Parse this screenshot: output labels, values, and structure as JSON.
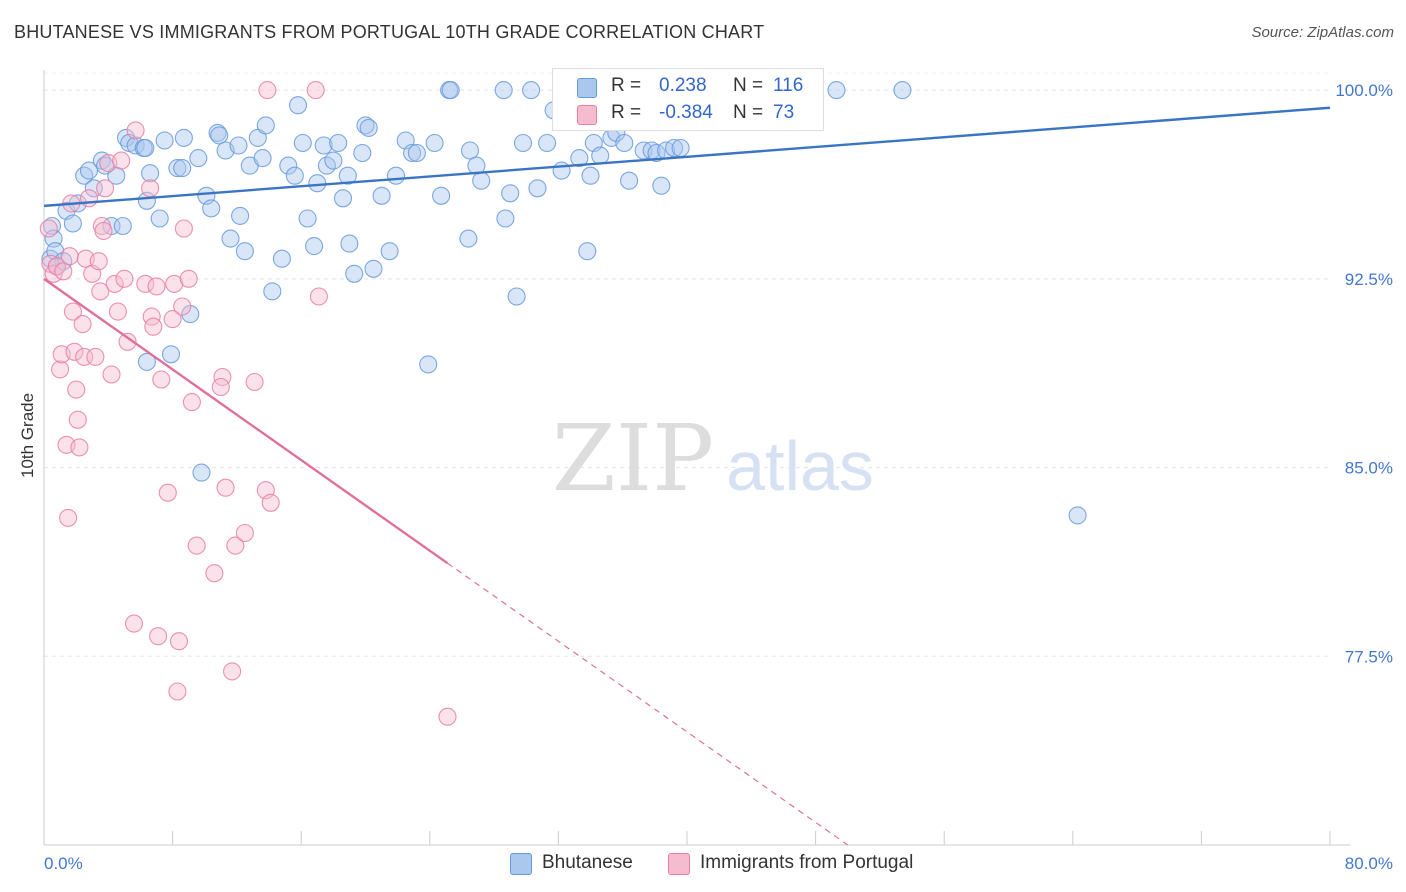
{
  "title": "BHUTANESE VS IMMIGRANTS FROM PORTUGAL 10TH GRADE CORRELATION CHART",
  "source": "Source: ZipAtlas.com",
  "watermark": {
    "zip": "ZIP",
    "atlas": "atlas"
  },
  "colors": {
    "blue": "#6699dd",
    "blue_fill": "#aac8ee",
    "blue_line": "#3a75c4",
    "pink": "#e87fa3",
    "pink_fill": "#f5bcd0",
    "pink_line": "#e0709a",
    "tick_text": "#4477cc",
    "grid": "#e3e3e3"
  },
  "stats": [
    {
      "r_label": "R =",
      "r_value": " 0.238",
      "n_label": "N =",
      "n_value": "116"
    },
    {
      "r_label": "R =",
      "r_value": "-0.384",
      "n_label": "N =",
      "n_value": " 73"
    }
  ],
  "chart_data": {
    "type": "scatter",
    "xlabel": "",
    "ylabel": "10th Grade",
    "xlim": [
      0,
      80
    ],
    "ylim": [
      70,
      100.8
    ],
    "x_ticks": [
      "0.0%",
      "80.0%"
    ],
    "y_ticks": [
      {
        "value": 100.0,
        "label": "100.0%"
      },
      {
        "value": 92.5,
        "label": "92.5%"
      },
      {
        "value": 85.0,
        "label": "85.0%"
      },
      {
        "value": 77.5,
        "label": "77.5%"
      }
    ],
    "grid": true,
    "legend_position": "bottom-center",
    "series": [
      {
        "name": "Bhutanese",
        "color": "blue",
        "trend": {
          "x": [
            0,
            80
          ],
          "y": [
            95.4,
            99.3
          ]
        },
        "points": [
          [
            0.4,
            93.3
          ],
          [
            0.5,
            94.6
          ],
          [
            0.6,
            94.1
          ],
          [
            0.7,
            93.6
          ],
          [
            0.8,
            93.0
          ],
          [
            1.2,
            93.2
          ],
          [
            1.4,
            95.2
          ],
          [
            1.8,
            94.7
          ],
          [
            2.1,
            95.5
          ],
          [
            2.5,
            96.6
          ],
          [
            2.8,
            96.8
          ],
          [
            3.1,
            96.1
          ],
          [
            3.6,
            97.2
          ],
          [
            3.8,
            97.0
          ],
          [
            4.2,
            94.6
          ],
          [
            4.5,
            96.6
          ],
          [
            4.9,
            94.6
          ],
          [
            5.1,
            98.1
          ],
          [
            5.3,
            97.9
          ],
          [
            5.7,
            97.8
          ],
          [
            6.2,
            97.7
          ],
          [
            6.3,
            97.7
          ],
          [
            6.4,
            89.2
          ],
          [
            6.6,
            96.7
          ],
          [
            6.4,
            95.6
          ],
          [
            7.2,
            94.9
          ],
          [
            7.5,
            98.0
          ],
          [
            7.9,
            89.5
          ],
          [
            8.3,
            96.9
          ],
          [
            8.6,
            96.9
          ],
          [
            8.7,
            98.1
          ],
          [
            9.1,
            91.1
          ],
          [
            9.6,
            97.3
          ],
          [
            9.8,
            84.8
          ],
          [
            10.1,
            95.8
          ],
          [
            10.4,
            95.3
          ],
          [
            10.8,
            98.3
          ],
          [
            10.9,
            98.2
          ],
          [
            11.3,
            97.6
          ],
          [
            11.6,
            94.1
          ],
          [
            12.1,
            97.8
          ],
          [
            12.2,
            95.0
          ],
          [
            12.5,
            93.6
          ],
          [
            12.8,
            97.0
          ],
          [
            13.3,
            98.1
          ],
          [
            13.6,
            97.3
          ],
          [
            13.8,
            98.6
          ],
          [
            14.2,
            92.0
          ],
          [
            14.8,
            93.3
          ],
          [
            15.2,
            97.0
          ],
          [
            15.6,
            96.6
          ],
          [
            15.8,
            99.4
          ],
          [
            16.1,
            97.9
          ],
          [
            16.4,
            94.9
          ],
          [
            16.8,
            93.8
          ],
          [
            17.0,
            96.3
          ],
          [
            17.4,
            97.8
          ],
          [
            17.6,
            97.0
          ],
          [
            18.0,
            97.2
          ],
          [
            18.3,
            97.9
          ],
          [
            18.6,
            95.7
          ],
          [
            18.9,
            96.6
          ],
          [
            19.0,
            93.9
          ],
          [
            19.3,
            92.7
          ],
          [
            19.8,
            97.5
          ],
          [
            20.0,
            98.6
          ],
          [
            20.2,
            98.5
          ],
          [
            20.5,
            92.9
          ],
          [
            21.0,
            95.8
          ],
          [
            21.5,
            93.6
          ],
          [
            21.9,
            96.6
          ],
          [
            22.5,
            98.0
          ],
          [
            22.9,
            97.5
          ],
          [
            23.2,
            97.5
          ],
          [
            23.9,
            89.1
          ],
          [
            24.3,
            97.9
          ],
          [
            24.7,
            95.8
          ],
          [
            25.2,
            100.0
          ],
          [
            25.3,
            100.0
          ],
          [
            26.5,
            97.6
          ],
          [
            26.4,
            94.1
          ],
          [
            26.9,
            97.0
          ],
          [
            27.2,
            96.4
          ],
          [
            28.6,
            100.0
          ],
          [
            28.7,
            94.9
          ],
          [
            29.0,
            95.9
          ],
          [
            29.4,
            91.8
          ],
          [
            29.8,
            97.9
          ],
          [
            30.3,
            100.0
          ],
          [
            30.7,
            96.1
          ],
          [
            31.3,
            97.9
          ],
          [
            31.7,
            99.2
          ],
          [
            32.2,
            96.8
          ],
          [
            33.3,
            97.3
          ],
          [
            33.8,
            93.6
          ],
          [
            34.0,
            96.6
          ],
          [
            34.2,
            97.9
          ],
          [
            34.6,
            97.4
          ],
          [
            35.3,
            98.1
          ],
          [
            35.6,
            98.3
          ],
          [
            36.1,
            97.9
          ],
          [
            36.4,
            96.4
          ],
          [
            37.3,
            97.6
          ],
          [
            37.8,
            97.6
          ],
          [
            38.1,
            97.5
          ],
          [
            38.4,
            96.2
          ],
          [
            38.7,
            97.6
          ],
          [
            39.2,
            97.7
          ],
          [
            39.6,
            97.7
          ],
          [
            40.8,
            100.0
          ],
          [
            42.1,
            99.5
          ],
          [
            45.3,
            99.2
          ],
          [
            46.4,
            100.0
          ],
          [
            47.2,
            99.3
          ],
          [
            49.3,
            100.0
          ],
          [
            53.4,
            100.0
          ],
          [
            64.3,
            83.1
          ]
        ]
      },
      {
        "name": "Immigrants from Portugal",
        "color": "pink",
        "trend": {
          "x": [
            0,
            25.1
          ],
          "y": [
            92.5,
            81.2
          ],
          "dashed_to": {
            "x": 50.0,
            "y": 70.0
          }
        },
        "points": [
          [
            0.3,
            94.5
          ],
          [
            0.4,
            93.1
          ],
          [
            0.6,
            92.7
          ],
          [
            0.8,
            93.0
          ],
          [
            1.0,
            88.9
          ],
          [
            1.1,
            89.5
          ],
          [
            1.2,
            92.8
          ],
          [
            1.4,
            85.9
          ],
          [
            1.5,
            83.0
          ],
          [
            1.6,
            93.4
          ],
          [
            1.7,
            95.5
          ],
          [
            1.8,
            91.2
          ],
          [
            1.9,
            89.6
          ],
          [
            2.0,
            88.1
          ],
          [
            2.1,
            86.9
          ],
          [
            2.2,
            85.8
          ],
          [
            2.4,
            90.7
          ],
          [
            2.5,
            89.4
          ],
          [
            2.6,
            93.3
          ],
          [
            2.8,
            95.7
          ],
          [
            3.0,
            92.7
          ],
          [
            3.2,
            89.4
          ],
          [
            3.4,
            93.2
          ],
          [
            3.5,
            92.0
          ],
          [
            3.6,
            94.6
          ],
          [
            3.7,
            94.4
          ],
          [
            3.8,
            96.1
          ],
          [
            4.0,
            97.1
          ],
          [
            4.2,
            88.7
          ],
          [
            4.4,
            92.3
          ],
          [
            4.6,
            91.2
          ],
          [
            4.8,
            97.2
          ],
          [
            5.0,
            92.5
          ],
          [
            5.2,
            90.0
          ],
          [
            5.6,
            78.8
          ],
          [
            5.7,
            98.4
          ],
          [
            6.3,
            92.3
          ],
          [
            6.6,
            96.1
          ],
          [
            6.7,
            91.0
          ],
          [
            6.8,
            90.6
          ],
          [
            7.0,
            92.2
          ],
          [
            7.1,
            78.3
          ],
          [
            7.3,
            88.5
          ],
          [
            7.7,
            84.0
          ],
          [
            8.0,
            90.9
          ],
          [
            8.1,
            92.3
          ],
          [
            8.3,
            76.1
          ],
          [
            8.4,
            78.1
          ],
          [
            8.6,
            91.4
          ],
          [
            8.7,
            94.5
          ],
          [
            9.0,
            92.5
          ],
          [
            9.2,
            87.6
          ],
          [
            9.5,
            81.9
          ],
          [
            10.6,
            80.8
          ],
          [
            11.1,
            88.6
          ],
          [
            11.0,
            88.2
          ],
          [
            11.3,
            84.2
          ],
          [
            11.7,
            76.9
          ],
          [
            11.9,
            81.9
          ],
          [
            12.5,
            82.4
          ],
          [
            13.1,
            88.4
          ],
          [
            13.8,
            84.1
          ],
          [
            14.1,
            83.6
          ],
          [
            13.9,
            100.0
          ],
          [
            16.9,
            100.0
          ],
          [
            17.1,
            91.8
          ],
          [
            25.1,
            75.1
          ]
        ]
      }
    ]
  },
  "legend": [
    "Bhutanese",
    "Immigrants from Portugal"
  ]
}
